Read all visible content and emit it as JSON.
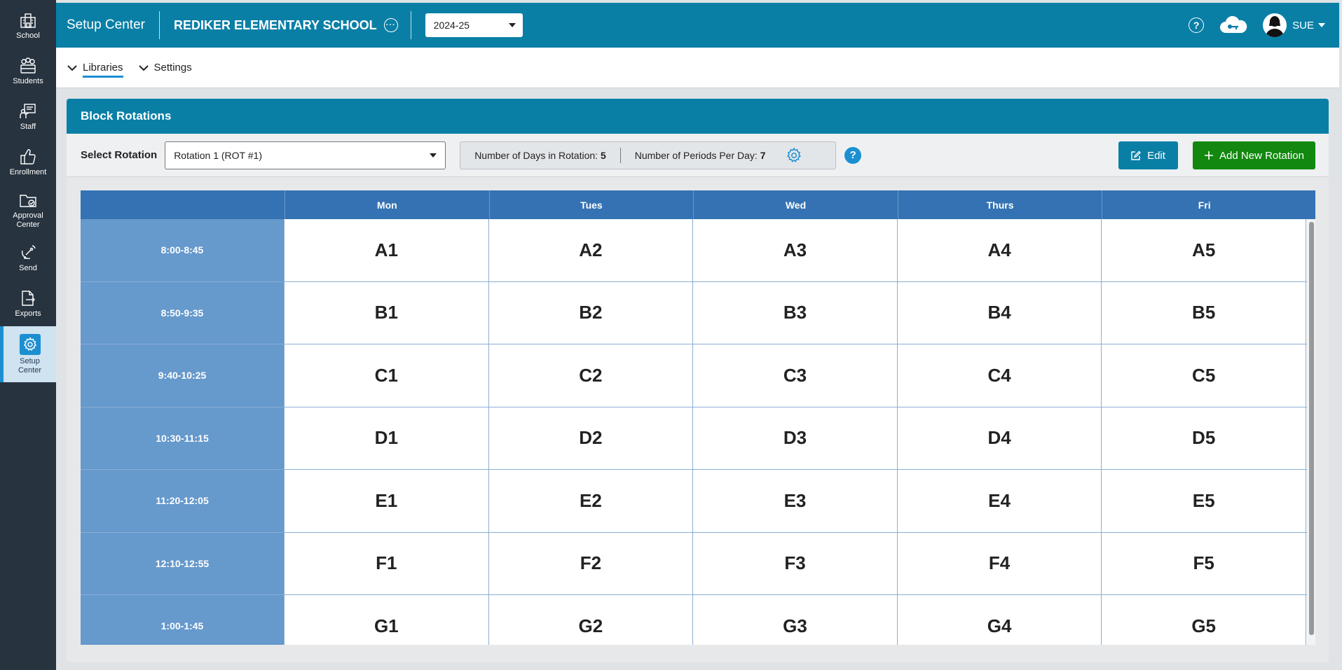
{
  "sidebar": {
    "items": [
      {
        "label": "School",
        "icon": "school-icon"
      },
      {
        "label": "Students",
        "icon": "students-icon"
      },
      {
        "label": "Staff",
        "icon": "staff-icon"
      },
      {
        "label": "Enrollment",
        "icon": "thumbs-up-icon"
      },
      {
        "label": "Approval Center",
        "icon": "folder-check-icon"
      },
      {
        "label": "Send",
        "icon": "satellite-icon"
      },
      {
        "label": "Exports",
        "icon": "export-icon"
      },
      {
        "label": "Setup Center",
        "icon": "gear-icon",
        "active": true
      }
    ]
  },
  "header": {
    "app_title": "Setup Center",
    "school_name": "REDIKER ELEMENTARY SCHOOL",
    "year": "2024-25",
    "user": "SUE"
  },
  "subnav": {
    "libraries": "Libraries",
    "settings": "Settings"
  },
  "card": {
    "title": "Block Rotations",
    "select_label": "Select Rotation",
    "rotation_value": "Rotation 1 (ROT #1)",
    "days_label": "Number of Days in Rotation:",
    "days_value": "5",
    "periods_label": "Number of Periods Per Day:",
    "periods_value": "7",
    "edit_label": "Edit",
    "add_label": "Add New Rotation"
  },
  "grid": {
    "days": [
      "Mon",
      "Tues",
      "Wed",
      "Thurs",
      "Fri"
    ],
    "rows": [
      {
        "time": "8:00-8:45",
        "cells": [
          "A1",
          "A2",
          "A3",
          "A4",
          "A5"
        ]
      },
      {
        "time": "8:50-9:35",
        "cells": [
          "B1",
          "B2",
          "B3",
          "B4",
          "B5"
        ]
      },
      {
        "time": "9:40-10:25",
        "cells": [
          "C1",
          "C2",
          "C3",
          "C4",
          "C5"
        ]
      },
      {
        "time": "10:30-11:15",
        "cells": [
          "D1",
          "D2",
          "D3",
          "D4",
          "D5"
        ]
      },
      {
        "time": "11:20-12:05",
        "cells": [
          "E1",
          "E2",
          "E3",
          "E4",
          "E5"
        ]
      },
      {
        "time": "12:10-12:55",
        "cells": [
          "F1",
          "F2",
          "F3",
          "F4",
          "F5"
        ]
      },
      {
        "time": "1:00-1:45",
        "cells": [
          "G1",
          "G2",
          "G3",
          "G4",
          "G5"
        ]
      }
    ]
  },
  "colors": {
    "header": "#0a7fa6",
    "sidebar": "#27333f",
    "grid_header": "#3472b3",
    "time_column": "#6699cc",
    "add_button": "#12880f"
  }
}
